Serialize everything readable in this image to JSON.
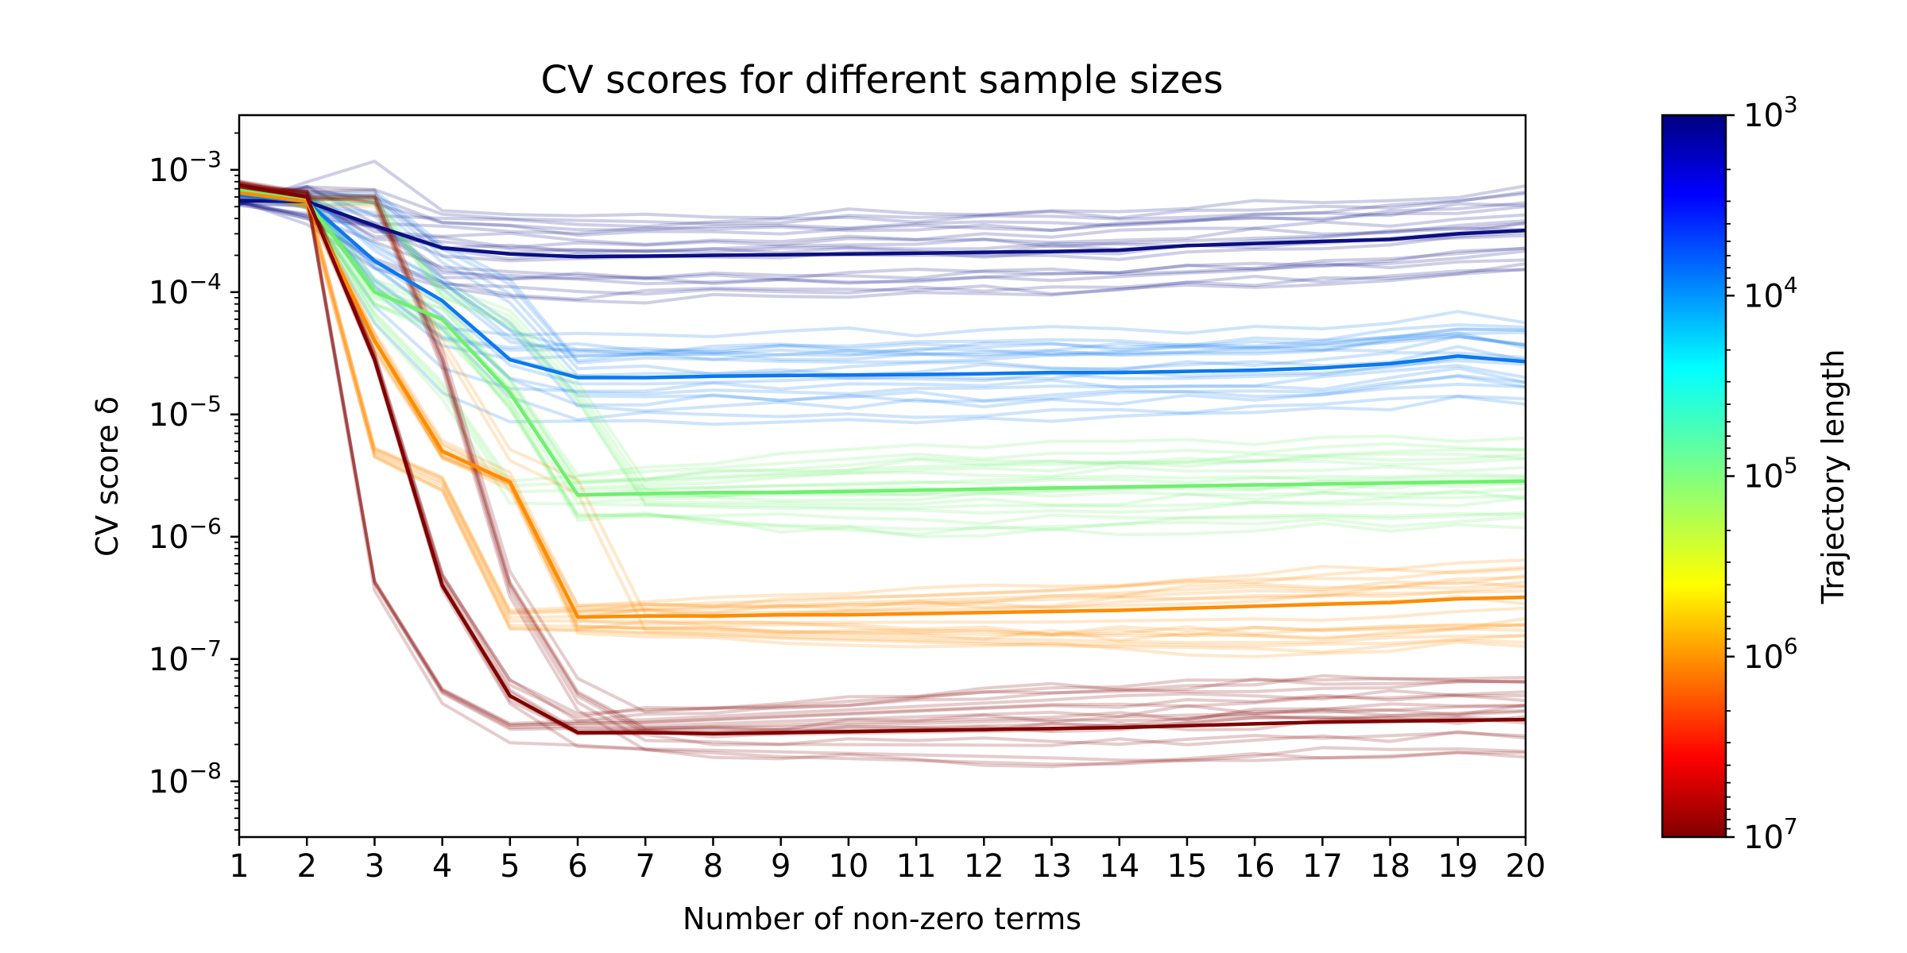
{
  "chart_data": {
    "type": "line",
    "title": "CV scores for different sample sizes",
    "xlabel": "Number of non-zero terms",
    "ylabel": "CV score δ",
    "yscale": "log",
    "xlim": [
      1,
      20
    ],
    "ylim": [
      3.5e-09,
      0.0028
    ],
    "x": [
      1,
      2,
      3,
      4,
      5,
      6,
      7,
      8,
      9,
      10,
      11,
      12,
      13,
      14,
      15,
      16,
      17,
      18,
      19,
      20
    ],
    "x_ticks": [
      "1",
      "2",
      "3",
      "4",
      "5",
      "6",
      "7",
      "8",
      "9",
      "10",
      "11",
      "12",
      "13",
      "14",
      "15",
      "16",
      "17",
      "18",
      "19",
      "20"
    ],
    "y_ticks": [
      {
        "base": "10",
        "exp": "−3",
        "value": 0.001
      },
      {
        "base": "10",
        "exp": "−4",
        "value": 0.0001
      },
      {
        "base": "10",
        "exp": "−5",
        "value": 1e-05
      },
      {
        "base": "10",
        "exp": "−6",
        "value": 1e-06
      },
      {
        "base": "10",
        "exp": "−7",
        "value": 1e-07
      },
      {
        "base": "10",
        "exp": "−8",
        "value": 1e-08
      }
    ],
    "grid": false,
    "series": [
      {
        "trajectory_length": 1000,
        "color": "#0b0f82",
        "values": [
          0.00056,
          0.00055,
          0.00035,
          0.00023,
          0.000205,
          0.000195,
          0.000197,
          0.0002,
          0.000202,
          0.000205,
          0.000208,
          0.000212,
          0.000215,
          0.00022,
          0.00024,
          0.00025,
          0.00026,
          0.00027,
          0.0003,
          0.00032
        ]
      },
      {
        "trajectory_length": 10000,
        "color": "#0a78f0",
        "values": [
          0.00062,
          0.00055,
          0.00018,
          8.5e-05,
          2.8e-05,
          2e-05,
          2e-05,
          2.05e-05,
          2.08e-05,
          2.1e-05,
          2.12e-05,
          2.15e-05,
          2.2e-05,
          2.2e-05,
          2.25e-05,
          2.3e-05,
          2.4e-05,
          2.6e-05,
          3e-05,
          2.7e-05
        ]
      },
      {
        "trajectory_length": 100000,
        "color": "#6ef06e",
        "values": [
          0.00068,
          0.00056,
          0.0001,
          6e-05,
          1.5e-05,
          2.2e-06,
          2.25e-06,
          2.3e-06,
          2.3e-06,
          2.35e-06,
          2.4e-06,
          2.45e-06,
          2.5e-06,
          2.55e-06,
          2.6e-06,
          2.65e-06,
          2.7e-06,
          2.75e-06,
          2.8e-06,
          2.85e-06
        ]
      },
      {
        "trajectory_length": 1000000,
        "color": "#ff8c00",
        "values": [
          0.00065,
          0.00055,
          4e-05,
          5e-06,
          2.8e-06,
          2.2e-07,
          2.25e-07,
          2.25e-07,
          2.3e-07,
          2.3e-07,
          2.35e-07,
          2.4e-07,
          2.45e-07,
          2.5e-07,
          2.6e-07,
          2.7e-07,
          2.8e-07,
          2.9e-07,
          3.1e-07,
          3.2e-07
        ]
      },
      {
        "trajectory_length": 10000000,
        "color": "#800000",
        "values": [
          0.00075,
          0.0006,
          2.8e-05,
          4e-07,
          5e-08,
          2.5e-08,
          2.5e-08,
          2.45e-08,
          2.5e-08,
          2.55e-08,
          2.6e-08,
          2.65e-08,
          2.7e-08,
          2.75e-08,
          2.85e-08,
          2.95e-08,
          3.05e-08,
          3.1e-08,
          3.15e-08,
          3.2e-08
        ]
      }
    ],
    "colorbar": {
      "label": "Trajectory length",
      "scale": "log",
      "colormap": "jet",
      "range": [
        1000,
        10000000
      ],
      "ticks": [
        {
          "base": "10",
          "exp": "3",
          "value": 1000
        },
        {
          "base": "10",
          "exp": "4",
          "value": 10000
        },
        {
          "base": "10",
          "exp": "5",
          "value": 100000
        },
        {
          "base": "10",
          "exp": "6",
          "value": 1000000
        },
        {
          "base": "10",
          "exp": "7",
          "value": 10000000
        }
      ]
    }
  }
}
